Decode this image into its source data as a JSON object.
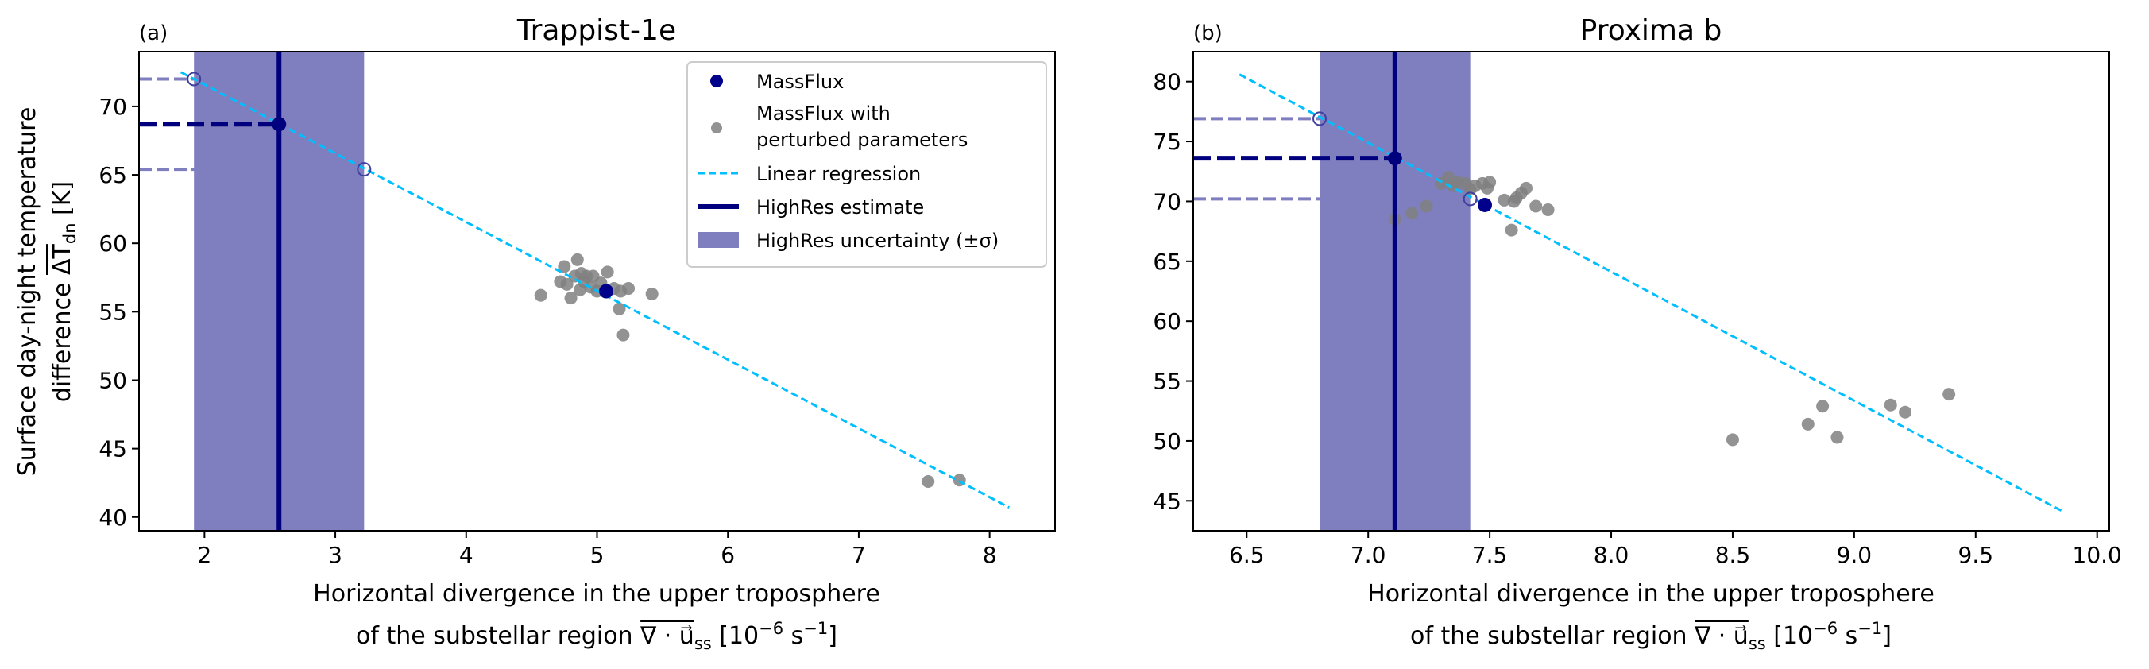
{
  "figure": {
    "ylabel_line1": "Surface day-night temperature",
    "ylabel_line2_prefix": "difference ",
    "ylabel_symbol": "ΔT",
    "ylabel_sub": "dn",
    "ylabel_units": " [K]",
    "xlabel_line1": "Horizontal divergence in the upper troposphere",
    "xlabel_line2_prefix": "of the substellar region ",
    "xlabel_symbol": "∇ · u⃗",
    "xlabel_sub": "ss",
    "xlabel_units_pre": " [10",
    "xlabel_exp": "−6",
    "xlabel_units_mid": " s",
    "xlabel_exp2": "−1",
    "xlabel_units_post": "]"
  },
  "legend": {
    "massflux": "MassFlux",
    "perturbed_line1": "MassFlux with",
    "perturbed_line2": "perturbed parameters",
    "regression": "Linear regression",
    "highres": "HighRes estimate",
    "uncertainty": "HighRes uncertainty (±σ)"
  },
  "colors": {
    "massflux": "#00008b",
    "perturbed": "#808080",
    "regression": "#00bfff",
    "highres": "#00007f",
    "band": "#7f7fbf",
    "sigma_line": "#7f7fbf"
  },
  "chart_data": [
    {
      "panel_label": "(a)",
      "title": "Trappist-1e",
      "type": "scatter",
      "xlim": [
        1.5,
        8.5
      ],
      "ylim": [
        39,
        74
      ],
      "xticks": [
        2,
        3,
        4,
        5,
        6,
        7,
        8
      ],
      "yticks": [
        40,
        45,
        50,
        55,
        60,
        65,
        70
      ],
      "grid": false,
      "legend_position": "top-right",
      "massflux": {
        "x": 5.07,
        "y": 56.5
      },
      "perturbed": [
        {
          "x": 4.57,
          "y": 56.2
        },
        {
          "x": 4.72,
          "y": 57.2
        },
        {
          "x": 4.75,
          "y": 58.3
        },
        {
          "x": 4.77,
          "y": 57.0
        },
        {
          "x": 4.8,
          "y": 56.0
        },
        {
          "x": 4.83,
          "y": 57.6
        },
        {
          "x": 4.85,
          "y": 58.8
        },
        {
          "x": 4.87,
          "y": 56.6
        },
        {
          "x": 4.88,
          "y": 57.8
        },
        {
          "x": 4.9,
          "y": 57.2
        },
        {
          "x": 4.92,
          "y": 57.6
        },
        {
          "x": 4.95,
          "y": 56.8
        },
        {
          "x": 4.97,
          "y": 57.6
        },
        {
          "x": 5.0,
          "y": 56.5
        },
        {
          "x": 5.03,
          "y": 57.1
        },
        {
          "x": 5.08,
          "y": 57.9
        },
        {
          "x": 5.13,
          "y": 56.7
        },
        {
          "x": 5.17,
          "y": 55.2
        },
        {
          "x": 5.18,
          "y": 56.5
        },
        {
          "x": 5.2,
          "y": 53.3
        },
        {
          "x": 5.24,
          "y": 56.7
        },
        {
          "x": 5.42,
          "y": 56.3
        },
        {
          "x": 7.53,
          "y": 42.6
        },
        {
          "x": 7.77,
          "y": 42.7
        }
      ],
      "regression": {
        "x": [
          1.82,
          8.15
        ],
        "y": [
          72.5,
          40.7
        ]
      },
      "highres": {
        "x": 2.57,
        "y": 68.7
      },
      "uncertainty": {
        "x_low": 1.92,
        "x_high": 3.22,
        "y_at_low": 72.0,
        "y_at_high": 65.4
      }
    },
    {
      "panel_label": "(b)",
      "title": "Proxima b",
      "type": "scatter",
      "xlim": [
        6.28,
        10.05
      ],
      "ylim": [
        42.5,
        82.5
      ],
      "xticks": [
        6.5,
        7.0,
        7.5,
        8.0,
        8.5,
        9.0,
        9.5,
        10.0
      ],
      "xtick_labels": [
        "6.5",
        "7.0",
        "7.5",
        "8.0",
        "8.5",
        "9.0",
        "9.5",
        "10.0"
      ],
      "yticks": [
        45,
        50,
        55,
        60,
        65,
        70,
        75,
        80
      ],
      "grid": false,
      "massflux": {
        "x": 7.48,
        "y": 69.7
      },
      "perturbed": [
        {
          "x": 7.11,
          "y": 68.5
        },
        {
          "x": 7.18,
          "y": 69.0
        },
        {
          "x": 7.24,
          "y": 69.6
        },
        {
          "x": 7.3,
          "y": 71.5
        },
        {
          "x": 7.33,
          "y": 72.0
        },
        {
          "x": 7.35,
          "y": 71.3
        },
        {
          "x": 7.37,
          "y": 71.6
        },
        {
          "x": 7.4,
          "y": 71.5
        },
        {
          "x": 7.42,
          "y": 71.0
        },
        {
          "x": 7.44,
          "y": 71.3
        },
        {
          "x": 7.47,
          "y": 71.5
        },
        {
          "x": 7.49,
          "y": 71.1
        },
        {
          "x": 7.5,
          "y": 71.6
        },
        {
          "x": 7.56,
          "y": 70.1
        },
        {
          "x": 7.59,
          "y": 67.6
        },
        {
          "x": 7.6,
          "y": 70.0
        },
        {
          "x": 7.61,
          "y": 70.3
        },
        {
          "x": 7.63,
          "y": 70.7
        },
        {
          "x": 7.65,
          "y": 71.1
        },
        {
          "x": 7.69,
          "y": 69.6
        },
        {
          "x": 7.74,
          "y": 69.3
        },
        {
          "x": 8.5,
          "y": 50.1
        },
        {
          "x": 8.81,
          "y": 51.4
        },
        {
          "x": 8.87,
          "y": 52.9
        },
        {
          "x": 8.93,
          "y": 50.3
        },
        {
          "x": 9.15,
          "y": 53.0
        },
        {
          "x": 9.21,
          "y": 52.4
        },
        {
          "x": 9.39,
          "y": 53.9
        }
      ],
      "regression": {
        "x": [
          6.47,
          9.86
        ],
        "y": [
          80.6,
          44.1
        ]
      },
      "highres": {
        "x": 7.11,
        "y": 73.6
      },
      "uncertainty": {
        "x_low": 6.8,
        "x_high": 7.42,
        "y_at_low": 76.9,
        "y_at_high": 70.2
      }
    }
  ]
}
